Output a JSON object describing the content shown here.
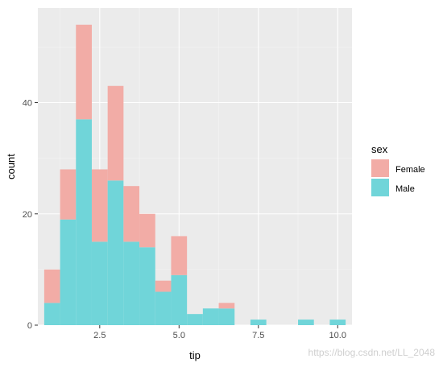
{
  "chart_data": {
    "type": "bar",
    "subtype": "stacked-histogram",
    "xlabel": "tip",
    "ylabel": "count",
    "x_ticks": [
      2.5,
      5.0,
      7.5,
      10.0
    ],
    "x_tick_labels": [
      "2.5",
      "5.0",
      "7.5",
      "10.0"
    ],
    "y_ticks": [
      0,
      20,
      40
    ],
    "y_tick_labels": [
      "0",
      "20",
      "40"
    ],
    "xlim": [
      0.55,
      10.45
    ],
    "ylim": [
      0,
      57
    ],
    "grid": true,
    "legend_position": "right",
    "legend": {
      "title": "sex",
      "entries": [
        {
          "label": "Female",
          "color": "#f2aca6"
        },
        {
          "label": "Male",
          "color": "#70d5d9"
        }
      ]
    },
    "bin_starts": [
      0.75,
      1.25,
      1.75,
      2.25,
      2.75,
      3.25,
      3.75,
      4.25,
      4.75,
      5.25,
      5.75,
      6.25,
      6.75,
      7.25,
      7.75,
      8.25,
      8.75,
      9.25,
      9.75
    ],
    "bin_width": 0.5,
    "series": [
      {
        "name": "Male",
        "color": "#70d5d9",
        "values": [
          4,
          19,
          37,
          15,
          26,
          15,
          14,
          6,
          9,
          2,
          3,
          3,
          0,
          1,
          0,
          0,
          1,
          0,
          1
        ]
      },
      {
        "name": "Female",
        "color": "#f2aca6",
        "values": [
          6,
          9,
          17,
          13,
          17,
          10,
          6,
          2,
          7,
          0,
          0,
          1,
          0,
          0,
          0,
          0,
          0,
          0,
          0
        ]
      }
    ]
  },
  "colors": {
    "panel_background": "#ebebeb",
    "grid_major": "#ffffff",
    "grid_minor": "#f5f5f5"
  },
  "watermark": "https://blog.csdn.net/LL_2048"
}
